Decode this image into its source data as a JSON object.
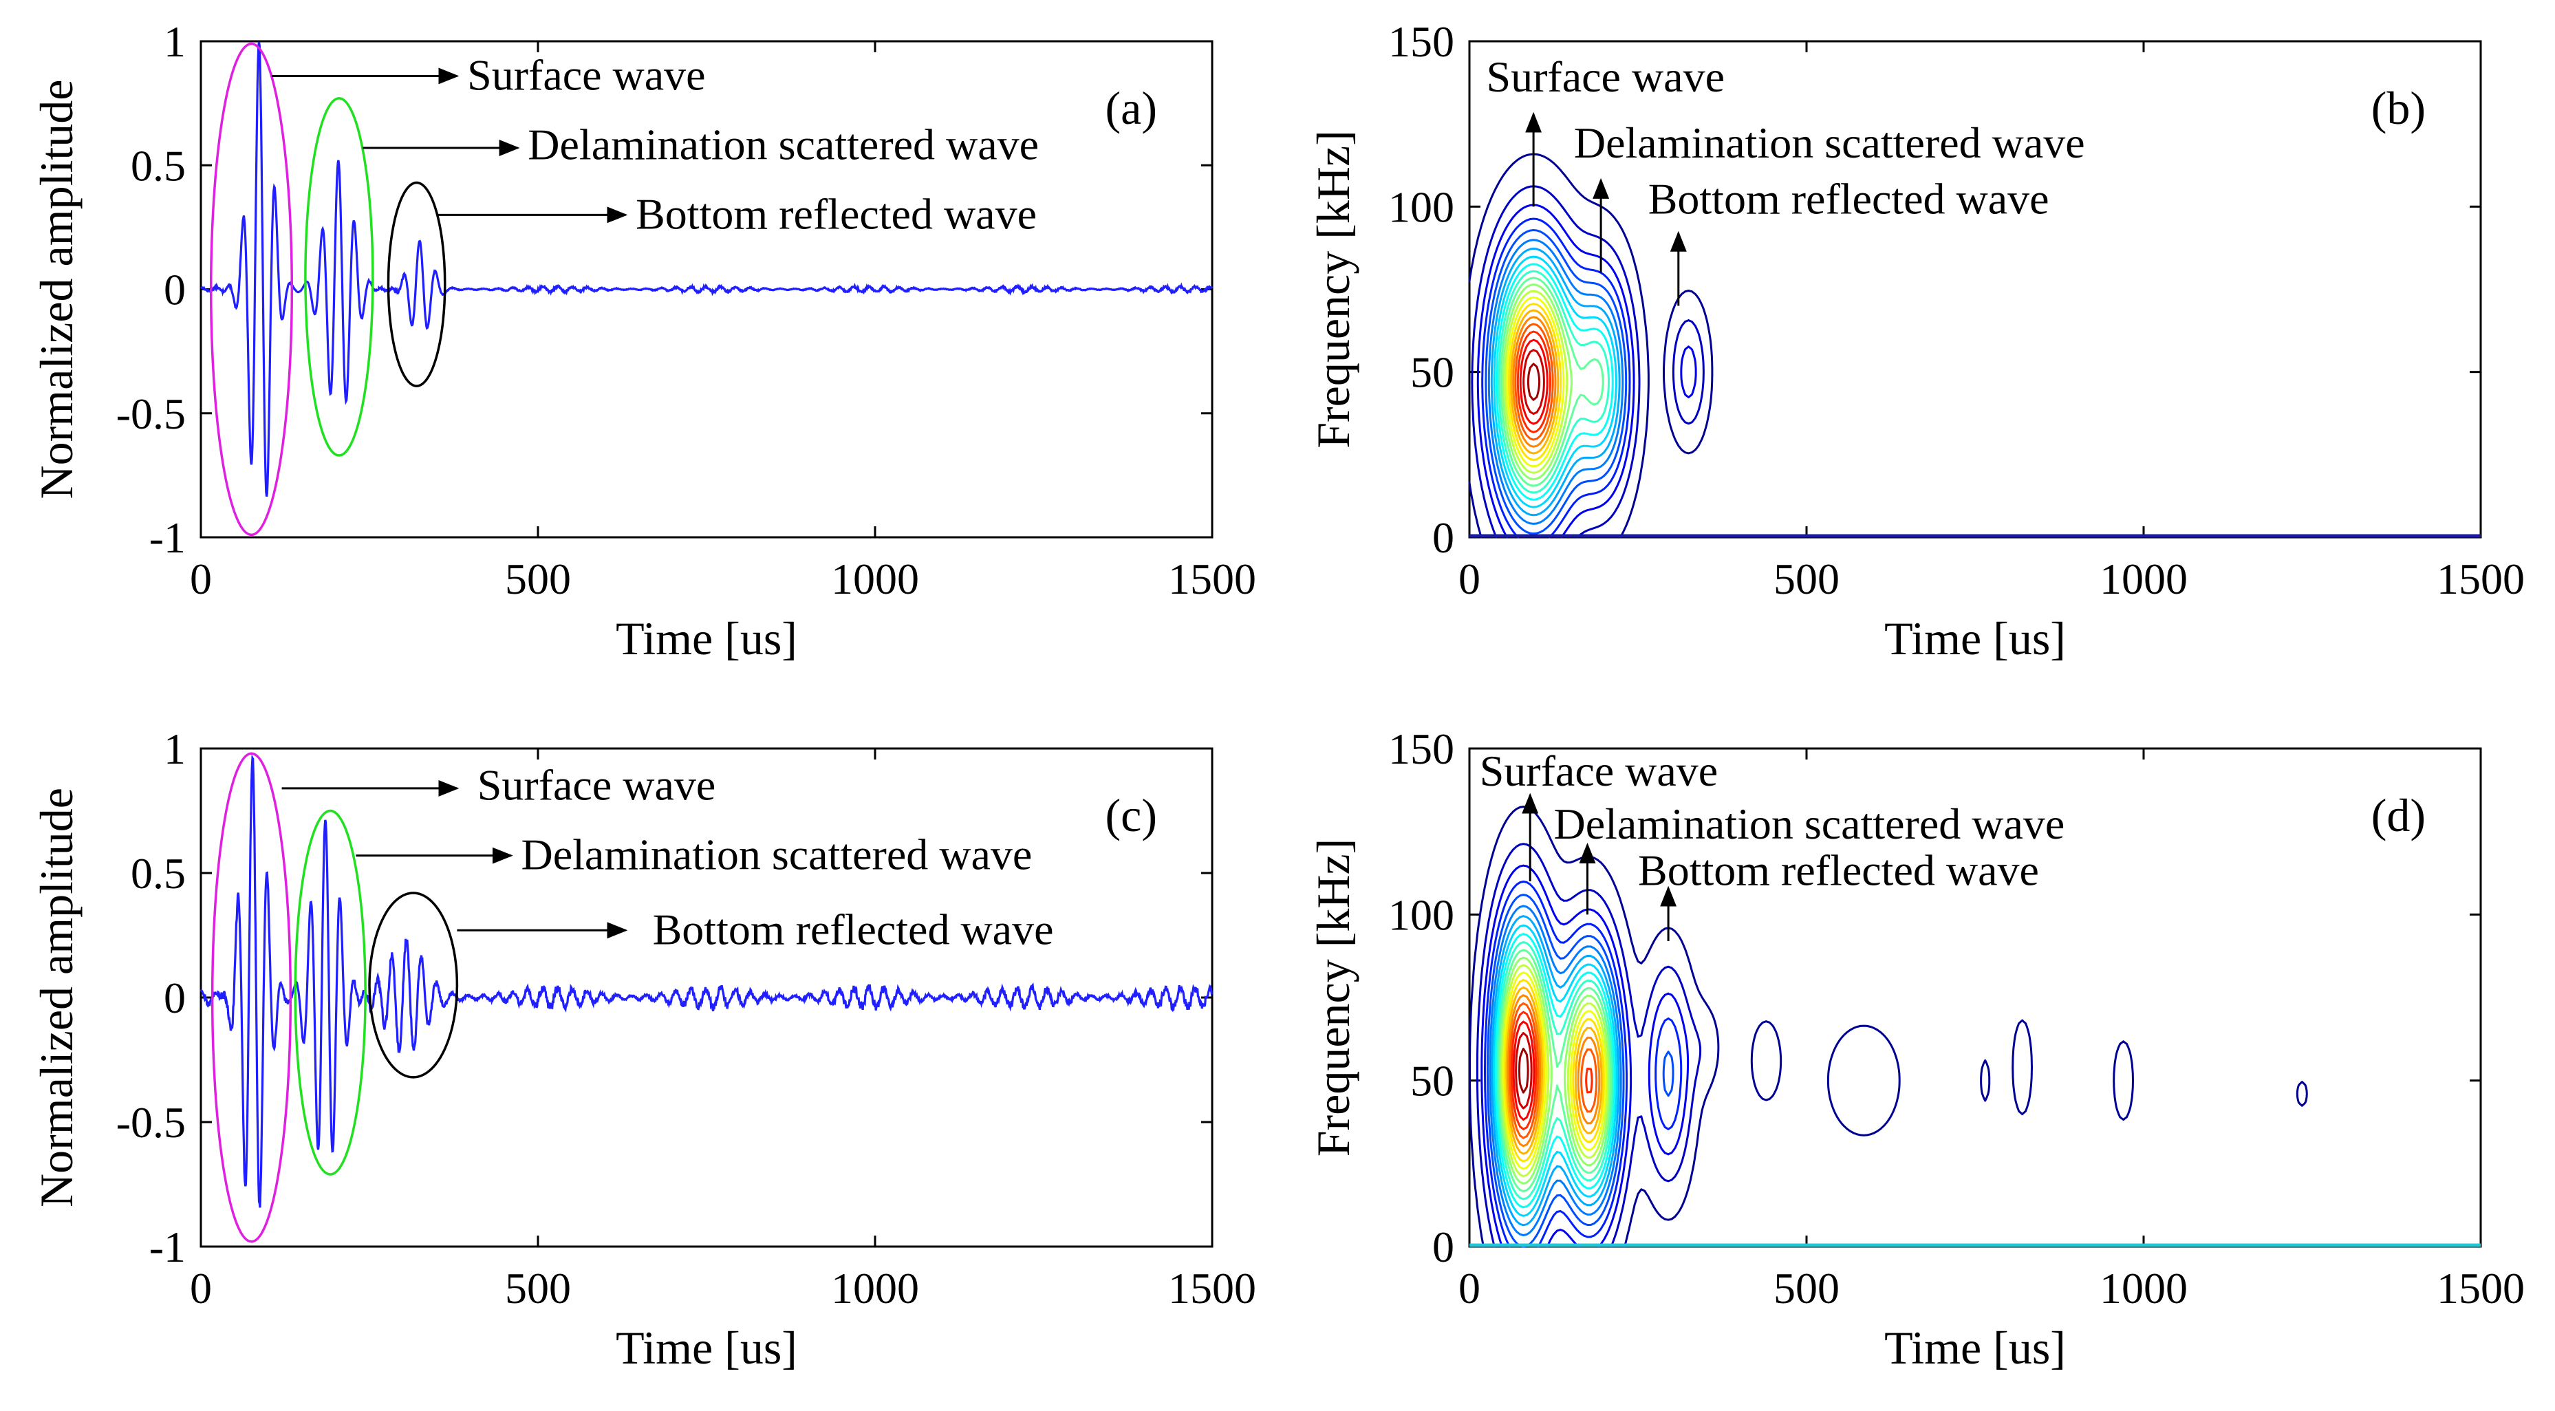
{
  "chart_data": [
    {
      "id": "a",
      "type": "line",
      "panel_label": "(a)",
      "xlabel": "Time [us]",
      "ylabel": "Normalized amplitude",
      "xlim": [
        0,
        1500
      ],
      "ylim": [
        -1,
        1
      ],
      "xticks": [
        "0",
        "500",
        "1000",
        "1500"
      ],
      "yticks": [
        "-1",
        "-0.5",
        "0",
        "0.5",
        "1"
      ],
      "line_color": "#1f1fff",
      "packets": [
        {
          "center": 88,
          "amp": 1.0,
          "sigma": 16,
          "period": 24,
          "phase": 0.5
        },
        {
          "center": 205,
          "amp": 0.52,
          "sigma": 20,
          "period": 24,
          "phase": 0.3
        },
        {
          "center": 325,
          "amp": 0.2,
          "sigma": 16,
          "period": 24,
          "phase": 0.2
        }
      ],
      "noise": 0.015,
      "ellipses": [
        {
          "name": "surface-wave-ellipse",
          "cx": 75,
          "cy": 0,
          "rx": 60,
          "ry": 0.99,
          "color": "#e020e0"
        },
        {
          "name": "delamination-ellipse",
          "cx": 205,
          "cy": 0.05,
          "rx": 50,
          "ry": 0.72,
          "color": "#20e020"
        },
        {
          "name": "bottom-reflected-ellipse",
          "cx": 320,
          "cy": 0.02,
          "rx": 42,
          "ry": 0.41,
          "color": "#000000"
        }
      ],
      "annotations": [
        {
          "text": "Surface wave",
          "arrow_from": [
            105,
            0.86
          ],
          "arrow_to": [
            380,
            0.86
          ],
          "text_at": [
            395,
            0.86
          ]
        },
        {
          "text": "Delamination scattered wave",
          "arrow_from": [
            240,
            0.57
          ],
          "arrow_to": [
            470,
            0.57
          ],
          "text_at": [
            485,
            0.58
          ]
        },
        {
          "text": "Bottom reflected wave",
          "arrow_from": [
            350,
            0.3
          ],
          "arrow_to": [
            630,
            0.3
          ],
          "text_at": [
            645,
            0.3
          ]
        }
      ]
    },
    {
      "id": "b",
      "type": "contour",
      "panel_label": "(b)",
      "xlabel": "Time [us]",
      "ylabel": "Frequency [kHz]",
      "xlim": [
        0,
        1500
      ],
      "ylim": [
        0,
        150
      ],
      "xticks": [
        "0",
        "500",
        "1000",
        "1500"
      ],
      "yticks": [
        "0",
        "50",
        "100",
        "150"
      ],
      "blobs": [
        {
          "x": 95,
          "y": 47,
          "sx": 40,
          "sy": 26,
          "peak": 1.0
        },
        {
          "x": 195,
          "y": 47,
          "sx": 30,
          "sy": 22,
          "peak": 0.45
        },
        {
          "x": 325,
          "y": 50,
          "sx": 20,
          "sy": 14,
          "peak": 0.14
        }
      ],
      "levels": 22,
      "annotations": [
        {
          "text": "Surface wave",
          "arrow_from": [
            95,
            100
          ],
          "arrow_to": [
            95,
            128
          ],
          "text_at": [
            25,
            139
          ]
        },
        {
          "text": "Delamination scattered wave",
          "arrow_from": [
            195,
            80
          ],
          "arrow_to": [
            195,
            108
          ],
          "text_at": [
            155,
            119
          ]
        },
        {
          "text": "Bottom reflected wave",
          "arrow_from": [
            310,
            70
          ],
          "arrow_to": [
            310,
            92
          ],
          "text_at": [
            265,
            102
          ]
        }
      ]
    },
    {
      "id": "c",
      "type": "line",
      "panel_label": "(c)",
      "xlabel": "Time [us]",
      "ylabel": "Normalized amplitude",
      "xlim": [
        0,
        1500
      ],
      "ylim": [
        -1,
        1
      ],
      "xticks": [
        "0",
        "500",
        "1000",
        "1500"
      ],
      "yticks": [
        "-1",
        "-0.5",
        "0",
        "0.5",
        "1"
      ],
      "line_color": "#1f1fff",
      "packets": [
        {
          "center": 78,
          "amp": 1.0,
          "sigma": 18,
          "period": 22,
          "phase": 0.4
        },
        {
          "center": 185,
          "amp": 0.72,
          "sigma": 20,
          "period": 22,
          "phase": 0.1
        },
        {
          "center": 305,
          "amp": 0.22,
          "sigma": 26,
          "period": 22,
          "phase": 0.2
        }
      ],
      "noise": 0.055,
      "ellipses": [
        {
          "name": "surface-wave-ellipse",
          "cx": 75,
          "cy": 0,
          "rx": 58,
          "ry": 0.98,
          "color": "#e020e0"
        },
        {
          "name": "delamination-ellipse",
          "cx": 192,
          "cy": 0.02,
          "rx": 52,
          "ry": 0.73,
          "color": "#20e020"
        },
        {
          "name": "bottom-reflected-ellipse",
          "cx": 315,
          "cy": 0.05,
          "rx": 65,
          "ry": 0.37,
          "color": "#000000"
        }
      ],
      "annotations": [
        {
          "text": "Surface wave",
          "arrow_from": [
            120,
            0.84
          ],
          "arrow_to": [
            380,
            0.84
          ],
          "text_at": [
            410,
            0.85
          ]
        },
        {
          "text": "Delamination scattered wave",
          "arrow_from": [
            230,
            0.57
          ],
          "arrow_to": [
            460,
            0.57
          ],
          "text_at": [
            475,
            0.57
          ]
        },
        {
          "text": "Bottom reflected wave",
          "arrow_from": [
            380,
            0.27
          ],
          "arrow_to": [
            630,
            0.27
          ],
          "text_at": [
            670,
            0.27
          ]
        }
      ]
    },
    {
      "id": "d",
      "type": "contour",
      "panel_label": "(d)",
      "xlabel": "Time [us]",
      "ylabel": "Frequency [kHz]",
      "xlim": [
        0,
        1500
      ],
      "ylim": [
        0,
        150
      ],
      "xticks": [
        "0",
        "500",
        "1000",
        "1500"
      ],
      "yticks": [
        "0",
        "50",
        "100",
        "150"
      ],
      "blobs": [
        {
          "x": 80,
          "y": 53,
          "sx": 30,
          "sy": 30,
          "peak": 1.0
        },
        {
          "x": 178,
          "y": 50,
          "sx": 30,
          "sy": 26,
          "peak": 0.85
        },
        {
          "x": 295,
          "y": 52,
          "sx": 24,
          "sy": 22,
          "peak": 0.22
        },
        {
          "x": 350,
          "y": 60,
          "sx": 18,
          "sy": 10,
          "peak": 0.05
        },
        {
          "x": 440,
          "y": 56,
          "sx": 18,
          "sy": 10,
          "peak": 0.06
        },
        {
          "x": 585,
          "y": 50,
          "sx": 45,
          "sy": 14,
          "peak": 0.06
        },
        {
          "x": 765,
          "y": 50,
          "sx": 6,
          "sy": 6,
          "peak": 0.05
        },
        {
          "x": 820,
          "y": 54,
          "sx": 12,
          "sy": 12,
          "peak": 0.06
        },
        {
          "x": 970,
          "y": 50,
          "sx": 12,
          "sy": 10,
          "peak": 0.06
        },
        {
          "x": 1235,
          "y": 46,
          "sx": 8,
          "sy": 4,
          "peak": 0.045
        }
      ],
      "levels": 22,
      "annotations": [
        {
          "text": "Surface wave",
          "arrow_from": [
            90,
            110
          ],
          "arrow_to": [
            90,
            136
          ],
          "text_at": [
            15,
            143
          ]
        },
        {
          "text": "Delamination scattered wave",
          "arrow_from": [
            175,
            100
          ],
          "arrow_to": [
            175,
            121
          ],
          "text_at": [
            125,
            127
          ]
        },
        {
          "text": "Bottom reflected wave",
          "arrow_from": [
            295,
            92
          ],
          "arrow_to": [
            295,
            108
          ],
          "text_at": [
            250,
            113
          ]
        }
      ]
    }
  ]
}
